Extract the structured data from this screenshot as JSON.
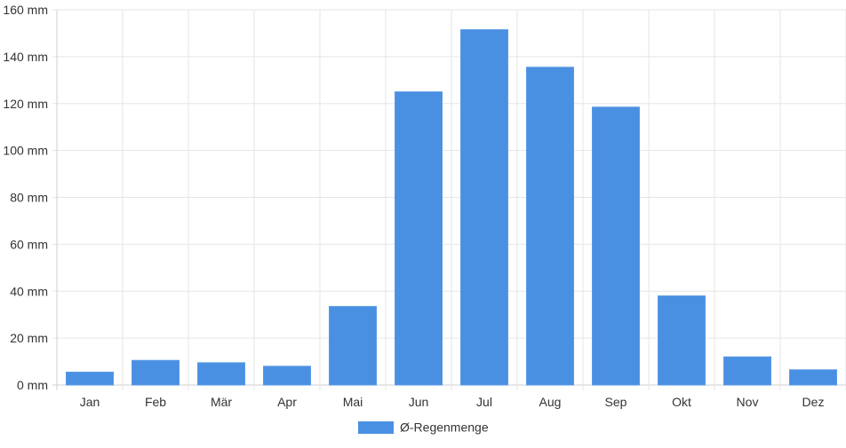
{
  "chart_data": {
    "type": "bar",
    "categories": [
      "Jan",
      "Feb",
      "Mär",
      "Apr",
      "Mai",
      "Jun",
      "Jul",
      "Aug",
      "Sep",
      "Okt",
      "Nov",
      "Dez"
    ],
    "series": [
      {
        "name": "Ø-Regenmenge",
        "values": [
          5.5,
          10.5,
          9.5,
          8,
          33.5,
          125,
          151.5,
          135.5,
          118.5,
          38,
          12,
          6.5
        ],
        "color": "#4a90e2"
      }
    ],
    "ylim": [
      0,
      160
    ],
    "yticks": [
      "0 mm",
      "20 mm",
      "40 mm",
      "60 mm",
      "80 mm",
      "100 mm",
      "120 mm",
      "140 mm",
      "160 mm"
    ],
    "grid": true,
    "legend": "bottom-center"
  }
}
